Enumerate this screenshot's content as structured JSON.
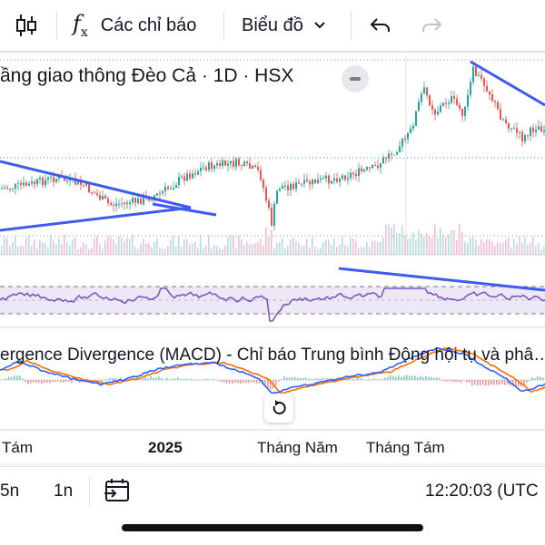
{
  "toolbar": {
    "indicators_label": "Các chỉ báo",
    "chart_type_label": "Biểu đồ",
    "candle_icon": "candlestick-icon",
    "fx_icon": "fx-icon",
    "undo_icon": "undo-icon",
    "redo_icon": "redo-icon"
  },
  "chart": {
    "symbol_title": "ầng giao thông Đèo Cả · 1D · HSX",
    "macd_title": "ergence Divergence (MACD) - Chỉ báo Trung bình Động hội tụ và phâ…",
    "x_axis_labels": [
      "Tám",
      "2025",
      "Tháng Năm",
      "Tháng Tám"
    ],
    "colors": {
      "up": "#26a69a",
      "down": "#ef5350",
      "trendline": "#3d5af1",
      "rsi": "#7e57c2",
      "macd": "#2962ff",
      "signal": "#ff6d00"
    }
  },
  "bottombar": {
    "interval_5n": "5n",
    "interval_1n": "1n",
    "clock": "12:20:03 (UTC"
  }
}
